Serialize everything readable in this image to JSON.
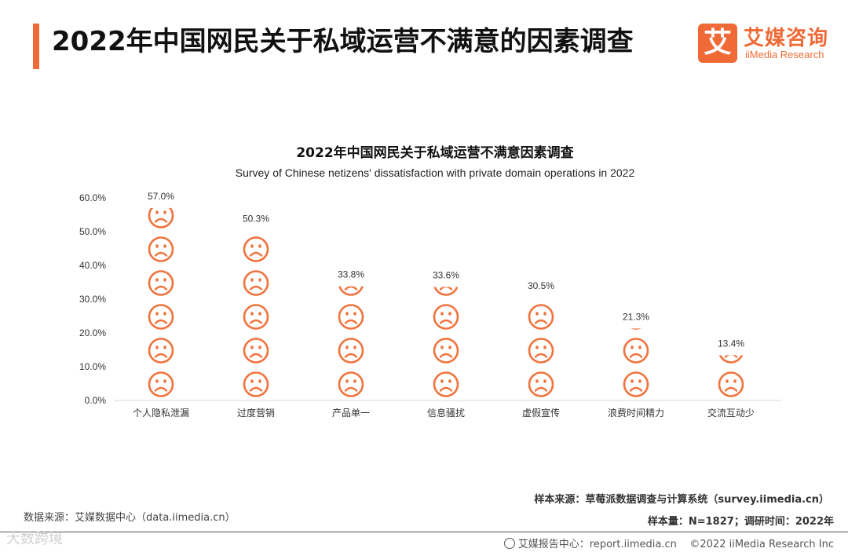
{
  "header": {
    "title": "2022年中国网民关于私域运营不满意的因素调查"
  },
  "logo": {
    "mark": "艾",
    "cn": "艾媒咨询",
    "en": "iiMedia Research"
  },
  "chart_data": {
    "type": "bar",
    "title": "2022年中国网民关于私域运营不满意因素调查",
    "subtitle": "Survey of Chinese netizens' dissatisfaction with private domain operations in 2022",
    "categories": [
      "个人隐私泄漏",
      "过度营销",
      "产品单一",
      "信息骚扰",
      "虚假宣传",
      "浪费时间精力",
      "交流互动少"
    ],
    "values": [
      57.0,
      50.3,
      33.8,
      33.6,
      30.5,
      21.3,
      13.4
    ],
    "value_labels": [
      "57.0%",
      "50.3%",
      "33.8%",
      "33.6%",
      "30.5%",
      "21.3%",
      "13.4%"
    ],
    "y_ticks": [
      "0.0%",
      "10.0%",
      "20.0%",
      "30.0%",
      "40.0%",
      "50.0%",
      "60.0%"
    ],
    "ylim": [
      0,
      60
    ],
    "grid": false,
    "mark": "sad-face-icon",
    "mark_color": "#f0733d"
  },
  "sources": {
    "data_source": "数据来源：艾媒数据中心（data.iimedia.cn）",
    "sample_source": "样本来源：草莓派数据调查与计算系统（survey.iimedia.cn）",
    "sample_info": "样本量：N=1827；调研时间：2022年"
  },
  "footer": {
    "report_center": "艾媒报告中心：report.iimedia.cn",
    "copyright": "©2022  iiMedia Research  Inc"
  },
  "watermark": "大数跨境"
}
